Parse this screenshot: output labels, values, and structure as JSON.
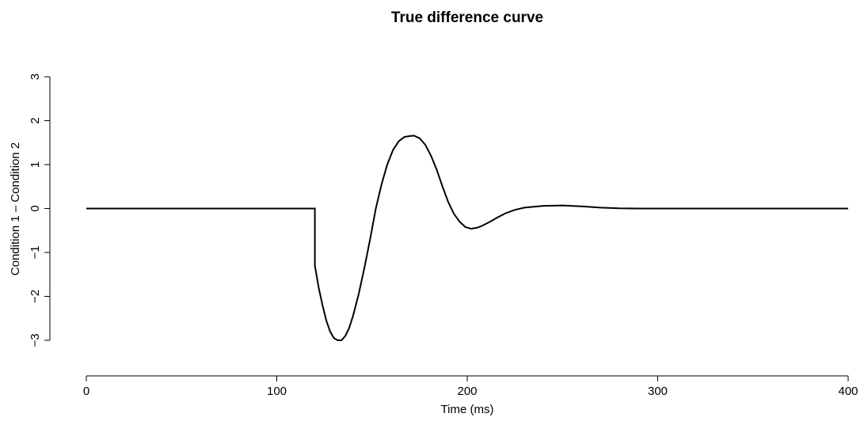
{
  "chart_data": {
    "type": "line",
    "title": "True difference curve",
    "x_label": "Time (ms)",
    "y_label": "Condition 1 – Condition 2",
    "series": [
      {
        "color": "#000000",
        "x": [
          0,
          120,
          120,
          122,
          124,
          126,
          128,
          130,
          132,
          134,
          136,
          138,
          140,
          143,
          146,
          149,
          152,
          155,
          158,
          161,
          164,
          167,
          170,
          172,
          175,
          178,
          181,
          184,
          187,
          190,
          193,
          196,
          199,
          202,
          205,
          208,
          212,
          216,
          220,
          225,
          230,
          240,
          250,
          260,
          270,
          280,
          290,
          400
        ],
        "values": [
          0,
          0,
          -1.3,
          -1.8,
          -2.2,
          -2.55,
          -2.8,
          -2.95,
          -3.0,
          -3.0,
          -2.9,
          -2.72,
          -2.45,
          -1.95,
          -1.35,
          -0.7,
          0,
          0.55,
          1.0,
          1.33,
          1.53,
          1.63,
          1.65,
          1.66,
          1.6,
          1.45,
          1.2,
          0.88,
          0.5,
          0.15,
          -0.12,
          -0.3,
          -0.42,
          -0.46,
          -0.44,
          -0.39,
          -0.3,
          -0.2,
          -0.11,
          -0.03,
          0.02,
          0.06,
          0.07,
          0.05,
          0.02,
          0.005,
          0,
          0
        ]
      }
    ],
    "xlim": [
      0,
      400
    ],
    "xticks": [
      0,
      100,
      200,
      300,
      400
    ],
    "ylim": [
      -3,
      3
    ],
    "yticks": [
      {
        "value": -3,
        "label": "−3"
      },
      {
        "value": -2,
        "label": "−2"
      },
      {
        "value": -1,
        "label": "−1"
      },
      0,
      1,
      2,
      3
    ]
  }
}
